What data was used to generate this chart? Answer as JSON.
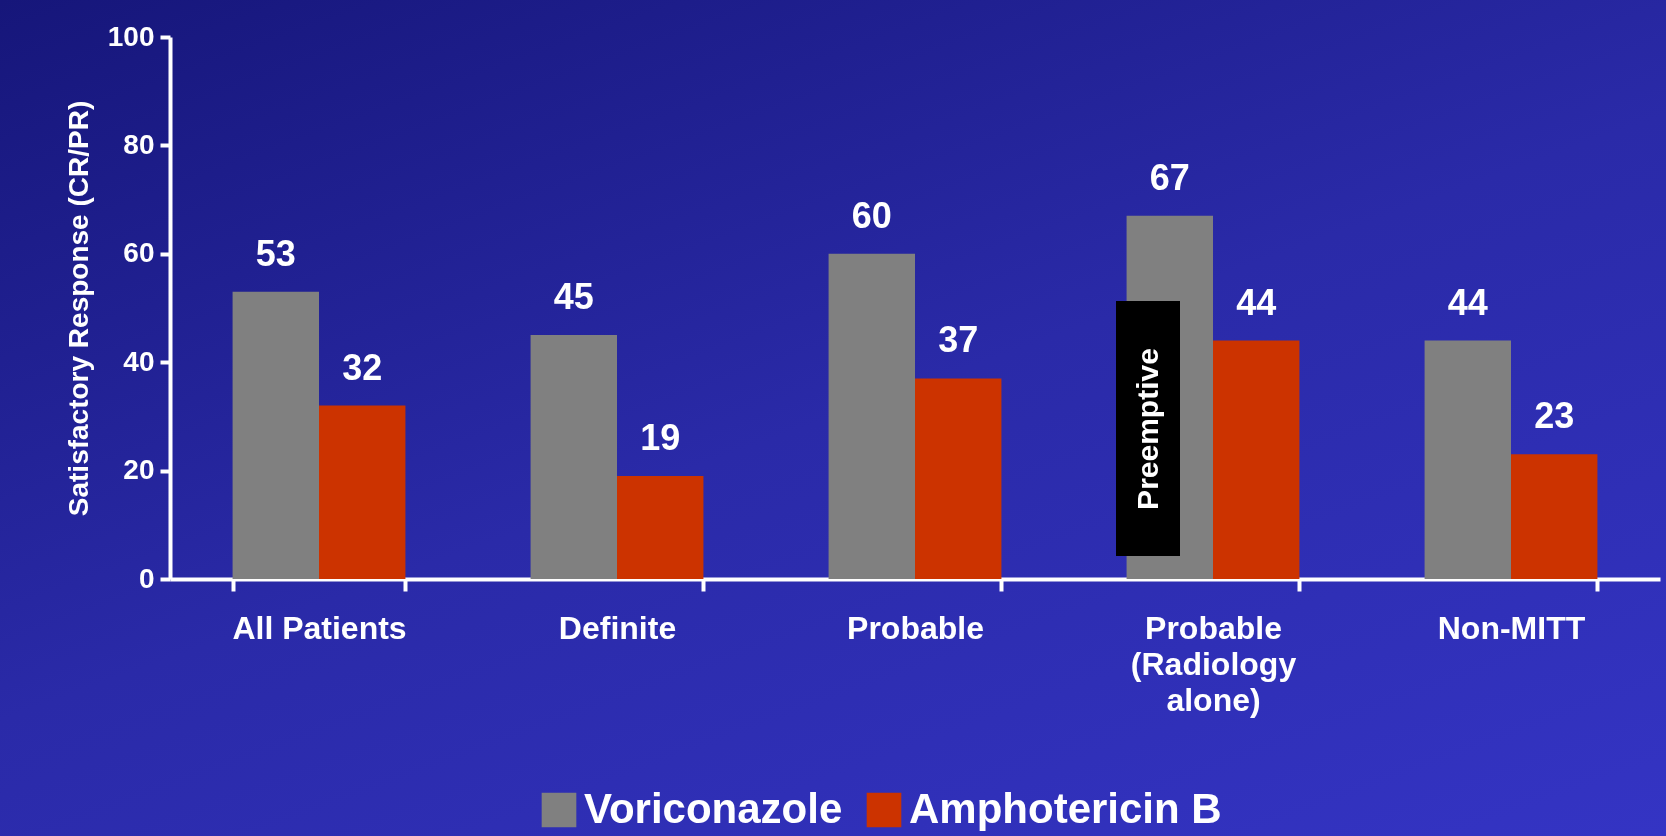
{
  "chart_data": {
    "type": "bar",
    "ylabel": "Satisfactory Response (CR/PR)",
    "categories": [
      "All Patients",
      "Definite",
      "Probable",
      "Probable\n(Radiology\nalone)",
      "Non-MITT"
    ],
    "series": [
      {
        "name": "Voriconazole",
        "color": "#808080",
        "values": [
          53,
          45,
          60,
          67,
          44
        ]
      },
      {
        "name": "Amphotericin B",
        "color": "#cc3300",
        "values": [
          32,
          19,
          37,
          44,
          23
        ]
      }
    ],
    "ylim": [
      0,
      100
    ],
    "yticks": [
      0,
      20,
      40,
      60,
      80,
      100
    ],
    "data_labels": true,
    "legend": "bottom",
    "grid": false,
    "annotations": [
      {
        "text": "Preemptive",
        "x": "Probable\n(Radiology\nalone)",
        "y": 47
      }
    ]
  }
}
